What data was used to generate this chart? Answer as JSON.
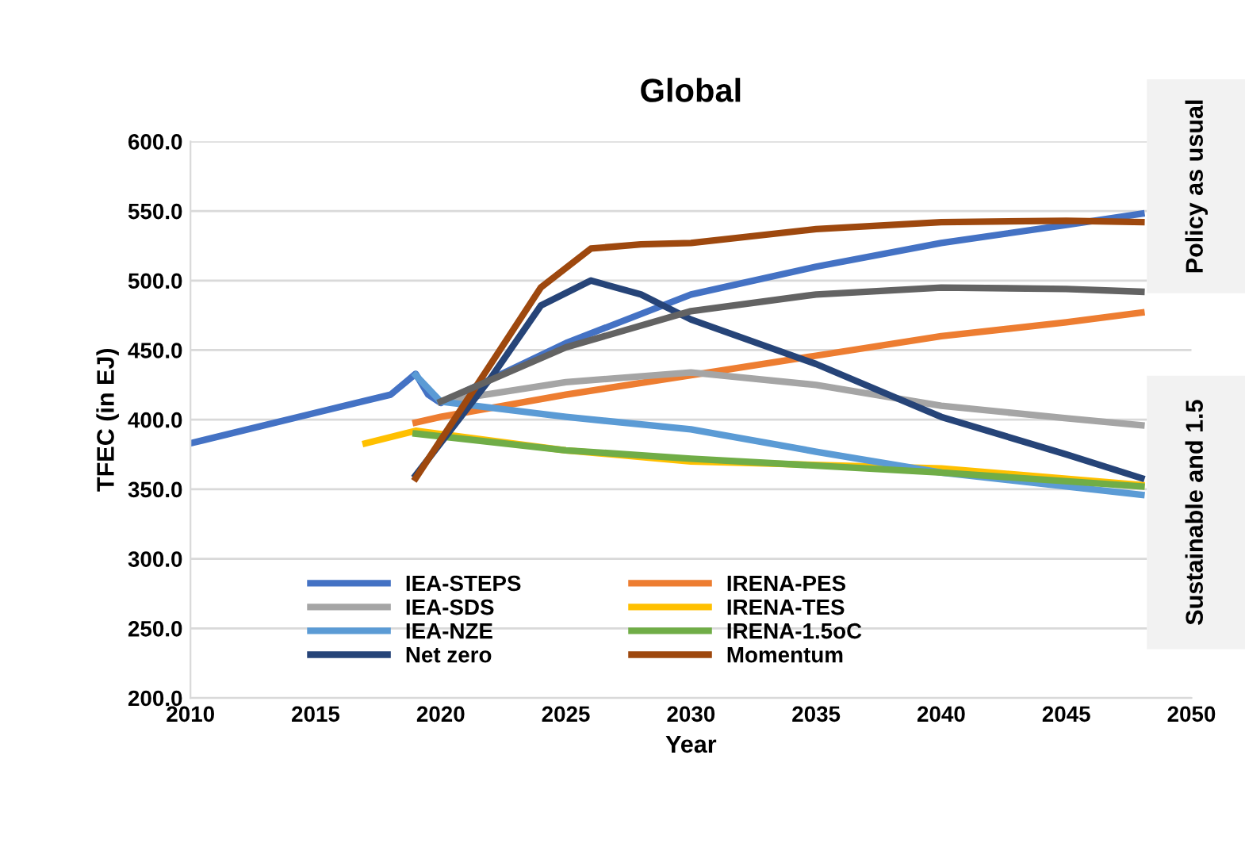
{
  "chart_data": {
    "type": "line",
    "title": "Global",
    "xlabel": "Year",
    "ylabel": "TFEC (in EJ)",
    "xlim": [
      2010,
      2050
    ],
    "xticks": [
      2010,
      2015,
      2020,
      2025,
      2030,
      2035,
      2040,
      2045,
      2050
    ],
    "ylim": [
      200,
      600
    ],
    "yticks": [
      {
        "value": 200,
        "label": "200.0"
      },
      {
        "value": 250,
        "label": "250.0"
      },
      {
        "value": 300,
        "label": "300.0"
      },
      {
        "value": 350,
        "label": "350.0"
      },
      {
        "value": 400,
        "label": "400.0"
      },
      {
        "value": 450,
        "label": "450.0"
      },
      {
        "value": 500,
        "label": "500.0"
      },
      {
        "value": 550,
        "label": "550.0"
      },
      {
        "value": 600,
        "label": "600.0"
      }
    ],
    "grid": "y",
    "legend": "bottom left",
    "marker": "none",
    "line_style": "solid",
    "annotations": [
      "Policy as usual",
      "Sustainable and 1.5"
    ],
    "series": [
      {
        "name": "IEA-STEPS",
        "color": "#4472c4",
        "x": [
          2010,
          2015,
          2018,
          2019,
          2019.5,
          2020,
          2025,
          2030,
          2035,
          2040,
          2045,
          2048
        ],
        "values": [
          383,
          405,
          418,
          433,
          418,
          412,
          455,
          490,
          510,
          527,
          540,
          548
        ]
      },
      {
        "name": "IRENA-PES",
        "color": "#ed7d31",
        "x": [
          2019,
          2020,
          2025,
          2030,
          2035,
          2040,
          2045,
          2048
        ],
        "values": [
          398,
          402,
          418,
          432,
          446,
          460,
          470,
          477
        ]
      },
      {
        "name": "IEA-SDS",
        "color": "#a5a5a5",
        "x": [
          2020,
          2025,
          2030,
          2035,
          2040,
          2045,
          2048
        ],
        "values": [
          413,
          427,
          434,
          425,
          410,
          401,
          396
        ]
      },
      {
        "name": "IRENA-TES",
        "color": "#ffc000",
        "x": [
          2017,
          2019,
          2025,
          2030,
          2040,
          2048
        ],
        "values": [
          383,
          392,
          378,
          370,
          365,
          353
        ]
      },
      {
        "name": "IEA-NZE",
        "color": "#5b9bd5",
        "x": [
          2019,
          2020,
          2025,
          2030,
          2035,
          2040,
          2045,
          2048
        ],
        "values": [
          432,
          413,
          402,
          393,
          377,
          362,
          352,
          346
        ]
      },
      {
        "name": "IRENA-1.5oC",
        "color": "#70ad47",
        "x": [
          2019,
          2025,
          2030,
          2035,
          2040,
          2048
        ],
        "values": [
          390,
          378,
          372,
          367,
          362,
          352
        ]
      },
      {
        "name": "Net zero",
        "color": "#264478",
        "x": [
          2019,
          2022,
          2024,
          2026,
          2028,
          2030,
          2035,
          2040,
          2045,
          2048
        ],
        "values": [
          360,
          430,
          482,
          500,
          490,
          472,
          440,
          402,
          375,
          358
        ]
      },
      {
        "name": "Momentum",
        "color": "#9e480e",
        "x": [
          2019,
          2022,
          2024,
          2026,
          2028,
          2030,
          2035,
          2040,
          2045,
          2048
        ],
        "values": [
          358,
          440,
          495,
          523,
          526,
          527,
          537,
          542,
          543,
          542
        ]
      },
      {
        "color": "#636363",
        "x": [
          2020,
          2025,
          2030,
          2035,
          2040,
          2045,
          2048
        ],
        "values": [
          413,
          452,
          478,
          490,
          495,
          494,
          492
        ]
      }
    ]
  }
}
